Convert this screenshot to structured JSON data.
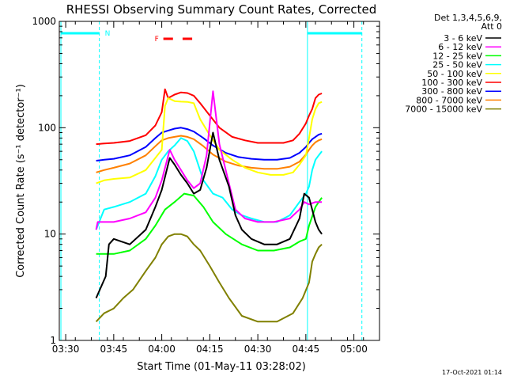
{
  "chart_data": {
    "type": "line",
    "title": "RHESSI Observing Summary Count Rates, Corrected",
    "xlabel": "Start Time (01-May-11 03:28:02)",
    "ylabel": "Corrected Count Rate (s⁻¹ detector⁻¹)",
    "y_scale": "log",
    "ylim": [
      1,
      1000
    ],
    "xlim_minutes": [
      208,
      308
    ],
    "x_ticks": [
      {
        "label": "03:30",
        "minute": 210
      },
      {
        "label": "03:45",
        "minute": 225
      },
      {
        "label": "04:00",
        "minute": 240
      },
      {
        "label": "04:15",
        "minute": 255
      },
      {
        "label": "04:30",
        "minute": 270
      },
      {
        "label": "04:45",
        "minute": 285
      },
      {
        "label": "05:00",
        "minute": 300
      }
    ],
    "y_ticks": [
      {
        "label": "1",
        "value": 1
      },
      {
        "label": "10",
        "value": 10
      },
      {
        "label": "100",
        "value": 100
      },
      {
        "label": "1000",
        "value": 1000
      }
    ],
    "legend": {
      "placement": "right",
      "header": [
        "Det 1,3,4,5,6,9,",
        "Att 0"
      ]
    },
    "series": [
      {
        "name": "3 - 6 keV",
        "color": "#000000",
        "points": [
          [
            219.5,
            2.5
          ],
          [
            222.5,
            4
          ],
          [
            223.5,
            8
          ],
          [
            225,
            9
          ],
          [
            230,
            8
          ],
          [
            235,
            11
          ],
          [
            238,
            18
          ],
          [
            240,
            26
          ],
          [
            242.5,
            52
          ],
          [
            244,
            45
          ],
          [
            246,
            36
          ],
          [
            248,
            30
          ],
          [
            250,
            24
          ],
          [
            252,
            26
          ],
          [
            254,
            42
          ],
          [
            256,
            90
          ],
          [
            258,
            50
          ],
          [
            261,
            28
          ],
          [
            263,
            15
          ],
          [
            265,
            11
          ],
          [
            268,
            9
          ],
          [
            272,
            8
          ],
          [
            276,
            8
          ],
          [
            280,
            9
          ],
          [
            283,
            14
          ],
          [
            284.5,
            24
          ],
          [
            286,
            22
          ],
          [
            288,
            13
          ],
          [
            289,
            11
          ],
          [
            290,
            10
          ]
        ]
      },
      {
        "name": "6 - 12 keV",
        "color": "#ff00ff",
        "points": [
          [
            219.5,
            11
          ],
          [
            220,
            13
          ],
          [
            225,
            13
          ],
          [
            230,
            14
          ],
          [
            235,
            16
          ],
          [
            238,
            22
          ],
          [
            240,
            32
          ],
          [
            242.5,
            62
          ],
          [
            244,
            50
          ],
          [
            246,
            40
          ],
          [
            248,
            32
          ],
          [
            250,
            27
          ],
          [
            252,
            30
          ],
          [
            254,
            55
          ],
          [
            256,
            220
          ],
          [
            258,
            70
          ],
          [
            261,
            30
          ],
          [
            263,
            17
          ],
          [
            266,
            14
          ],
          [
            270,
            13
          ],
          [
            275,
            13
          ],
          [
            280,
            14
          ],
          [
            283,
            17
          ],
          [
            284.5,
            20
          ],
          [
            286,
            19
          ],
          [
            288,
            20
          ],
          [
            290,
            20
          ]
        ]
      },
      {
        "name": "12 - 25 keV",
        "color": "#00ff00",
        "points": [
          [
            219.5,
            6.5
          ],
          [
            225,
            6.5
          ],
          [
            230,
            7
          ],
          [
            235,
            9
          ],
          [
            238,
            12
          ],
          [
            241,
            17
          ],
          [
            244,
            20
          ],
          [
            247,
            24
          ],
          [
            250,
            23
          ],
          [
            253,
            18
          ],
          [
            256,
            13
          ],
          [
            260,
            10
          ],
          [
            265,
            8
          ],
          [
            270,
            7
          ],
          [
            275,
            7
          ],
          [
            280,
            7.5
          ],
          [
            283,
            8.5
          ],
          [
            285,
            9
          ],
          [
            286,
            12
          ],
          [
            288,
            18
          ],
          [
            289,
            20
          ],
          [
            290,
            22
          ]
        ]
      },
      {
        "name": "25 - 50 keV",
        "color": "#00ffff",
        "points": [
          [
            219.5,
            11
          ],
          [
            222,
            17
          ],
          [
            225,
            18
          ],
          [
            230,
            20
          ],
          [
            235,
            24
          ],
          [
            238,
            35
          ],
          [
            240,
            50
          ],
          [
            242,
            60
          ],
          [
            244,
            68
          ],
          [
            246,
            80
          ],
          [
            248,
            75
          ],
          [
            250,
            60
          ],
          [
            253,
            32
          ],
          [
            256,
            24
          ],
          [
            259,
            22
          ],
          [
            262,
            17
          ],
          [
            265,
            15
          ],
          [
            268,
            14
          ],
          [
            272,
            13
          ],
          [
            276,
            13
          ],
          [
            280,
            15
          ],
          [
            283,
            20
          ],
          [
            285,
            24
          ],
          [
            286,
            28
          ],
          [
            287,
            40
          ],
          [
            288,
            50
          ],
          [
            289,
            55
          ],
          [
            290,
            60
          ]
        ]
      },
      {
        "name": "50 - 100 keV",
        "color": "#ffff00",
        "points": [
          [
            219.5,
            30
          ],
          [
            222,
            32
          ],
          [
            225,
            33
          ],
          [
            230,
            34
          ],
          [
            235,
            40
          ],
          [
            238,
            52
          ],
          [
            240,
            62
          ],
          [
            241,
            160
          ],
          [
            242,
            190
          ],
          [
            244,
            178
          ],
          [
            246,
            176
          ],
          [
            248,
            175
          ],
          [
            250,
            170
          ],
          [
            252,
            120
          ],
          [
            255,
            85
          ],
          [
            258,
            62
          ],
          [
            262,
            50
          ],
          [
            266,
            42
          ],
          [
            270,
            38
          ],
          [
            274,
            36
          ],
          [
            278,
            36
          ],
          [
            281,
            38
          ],
          [
            283,
            45
          ],
          [
            285,
            55
          ],
          [
            286,
            80
          ],
          [
            287,
            120
          ],
          [
            288,
            150
          ],
          [
            289,
            170
          ],
          [
            290,
            175
          ]
        ]
      },
      {
        "name": "100 - 300 keV",
        "color": "#ff0000",
        "points": [
          [
            219.5,
            70
          ],
          [
            222,
            71
          ],
          [
            225,
            72
          ],
          [
            230,
            75
          ],
          [
            235,
            85
          ],
          [
            238,
            105
          ],
          [
            240,
            140
          ],
          [
            241,
            230
          ],
          [
            242,
            190
          ],
          [
            244,
            205
          ],
          [
            246,
            215
          ],
          [
            248,
            212
          ],
          [
            250,
            200
          ],
          [
            252,
            170
          ],
          [
            255,
            130
          ],
          [
            258,
            100
          ],
          [
            262,
            82
          ],
          [
            266,
            76
          ],
          [
            270,
            72
          ],
          [
            274,
            72
          ],
          [
            278,
            72
          ],
          [
            281,
            76
          ],
          [
            283,
            88
          ],
          [
            285,
            110
          ],
          [
            286,
            130
          ],
          [
            287,
            150
          ],
          [
            288,
            190
          ],
          [
            289,
            205
          ],
          [
            290,
            210
          ]
        ]
      },
      {
        "name": "300 - 800 keV",
        "color": "#0000ff",
        "points": [
          [
            219.5,
            49
          ],
          [
            222,
            50
          ],
          [
            225,
            51
          ],
          [
            230,
            55
          ],
          [
            235,
            66
          ],
          [
            238,
            80
          ],
          [
            240,
            90
          ],
          [
            242,
            94
          ],
          [
            244,
            98
          ],
          [
            246,
            100
          ],
          [
            248,
            97
          ],
          [
            250,
            92
          ],
          [
            253,
            80
          ],
          [
            256,
            68
          ],
          [
            260,
            58
          ],
          [
            264,
            53
          ],
          [
            268,
            51
          ],
          [
            272,
            50
          ],
          [
            276,
            50
          ],
          [
            280,
            52
          ],
          [
            283,
            58
          ],
          [
            285,
            66
          ],
          [
            286,
            72
          ],
          [
            287,
            78
          ],
          [
            288,
            82
          ],
          [
            289,
            86
          ],
          [
            290,
            88
          ]
        ]
      },
      {
        "name": "800 - 7000 keV",
        "color": "#ff8000",
        "points": [
          [
            219.5,
            38
          ],
          [
            222,
            40
          ],
          [
            225,
            42
          ],
          [
            230,
            46
          ],
          [
            235,
            55
          ],
          [
            238,
            67
          ],
          [
            240,
            76
          ],
          [
            242,
            80
          ],
          [
            244,
            82
          ],
          [
            246,
            84
          ],
          [
            248,
            82
          ],
          [
            250,
            78
          ],
          [
            253,
            67
          ],
          [
            256,
            56
          ],
          [
            260,
            48
          ],
          [
            264,
            44
          ],
          [
            268,
            42
          ],
          [
            272,
            41
          ],
          [
            276,
            41
          ],
          [
            280,
            43
          ],
          [
            283,
            48
          ],
          [
            285,
            56
          ],
          [
            286,
            62
          ],
          [
            287,
            68
          ],
          [
            288,
            73
          ],
          [
            289,
            76
          ],
          [
            290,
            78
          ]
        ]
      },
      {
        "name": "7000 - 15000 keV",
        "color": "#808000",
        "points": [
          [
            219.5,
            1.5
          ],
          [
            222,
            1.8
          ],
          [
            225,
            2
          ],
          [
            228,
            2.5
          ],
          [
            231,
            3
          ],
          [
            235,
            4.5
          ],
          [
            238,
            6
          ],
          [
            240,
            8
          ],
          [
            242,
            9.5
          ],
          [
            244,
            10
          ],
          [
            246,
            10
          ],
          [
            248,
            9.5
          ],
          [
            250,
            8
          ],
          [
            252,
            7
          ],
          [
            255,
            5
          ],
          [
            258,
            3.5
          ],
          [
            261,
            2.5
          ],
          [
            265,
            1.7
          ],
          [
            270,
            1.5
          ],
          [
            276,
            1.5
          ],
          [
            281,
            1.8
          ],
          [
            284,
            2.5
          ],
          [
            286,
            3.5
          ],
          [
            287,
            5.5
          ],
          [
            288,
            6.5
          ],
          [
            289,
            7.5
          ],
          [
            290,
            8
          ]
        ]
      }
    ],
    "annotations": [
      {
        "text": "N",
        "color": "#00ffff",
        "kind": "night-bar",
        "x_minutes": [
          208.5,
          220.5
        ]
      },
      {
        "text": "",
        "color": "#00ffff",
        "kind": "night-bar",
        "x_minutes": [
          285.5,
          302.5
        ]
      },
      {
        "text": "F",
        "color": "#ff0000",
        "kind": "flare-bar",
        "x_minutes": [
          [
            240.5,
            243.5
          ],
          [
            246.5,
            249.5
          ]
        ]
      }
    ],
    "night_boundaries_minutes": [
      208.5,
      220.5,
      285.5,
      302.5
    ],
    "grid": false,
    "footer_timestamp": "17-Oct-2021 01:14"
  }
}
